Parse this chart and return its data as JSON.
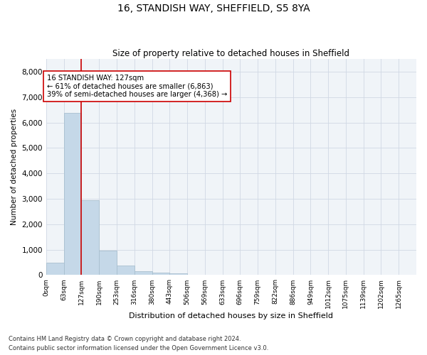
{
  "title1": "16, STANDISH WAY, SHEFFIELD, S5 8YA",
  "title2": "Size of property relative to detached houses in Sheffield",
  "xlabel": "Distribution of detached houses by size in Sheffield",
  "ylabel": "Number of detached properties",
  "categories": [
    "0sqm",
    "63sqm",
    "127sqm",
    "190sqm",
    "253sqm",
    "316sqm",
    "380sqm",
    "443sqm",
    "506sqm",
    "569sqm",
    "633sqm",
    "696sqm",
    "759sqm",
    "822sqm",
    "886sqm",
    "949sqm",
    "1012sqm",
    "1075sqm",
    "1139sqm",
    "1202sqm",
    "1265sqm"
  ],
  "values": [
    480,
    6380,
    2940,
    960,
    370,
    155,
    105,
    65,
    0,
    0,
    0,
    0,
    0,
    0,
    0,
    0,
    0,
    0,
    0,
    0,
    0
  ],
  "bar_color": "#c5d8e8",
  "bar_edge_color": "#a8bfcf",
  "marker_label_line1": "16 STANDISH WAY: 127sqm",
  "marker_label_line2": "← 61% of detached houses are smaller (6,863)",
  "marker_label_line3": "39% of semi-detached houses are larger (4,368) →",
  "marker_color": "#cc0000",
  "ylim": [
    0,
    8500
  ],
  "yticks": [
    0,
    1000,
    2000,
    3000,
    4000,
    5000,
    6000,
    7000,
    8000
  ],
  "footnote1": "Contains HM Land Registry data © Crown copyright and database right 2024.",
  "footnote2": "Contains public sector information licensed under the Open Government Licence v3.0.",
  "grid_color": "#d0d8e4",
  "bg_color": "#f0f4f8"
}
